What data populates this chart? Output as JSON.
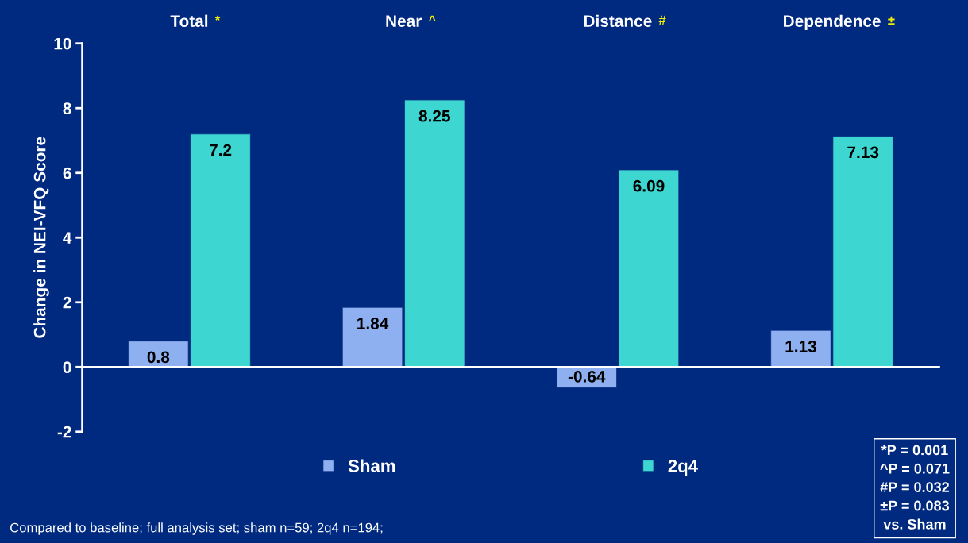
{
  "chart_data": {
    "type": "bar",
    "categories": [
      "Total",
      "Near",
      "Distance",
      "Dependence"
    ],
    "ylabel": "Change in NEI-VFQ Score",
    "series": [
      {
        "name": "Sham",
        "color": "#8fb0f0",
        "values": [
          0.8,
          1.84,
          -0.64,
          1.13
        ]
      },
      {
        "name": "2q4",
        "color": "#3dd6d0",
        "values": [
          7.2,
          8.25,
          6.09,
          7.13
        ]
      }
    ],
    "ylim": [
      -2,
      10
    ],
    "yticks": [
      -2,
      0,
      2,
      4,
      6,
      8,
      10
    ],
    "data_labels": true,
    "legend": "bottom",
    "annotations": [
      "*",
      "^",
      "#",
      "±",
      "*P = 0.001\n^P = 0.071\n#P = 0.032\n±P = 0.083\nvs. Sham",
      "Compared to baseline; full analysis set; sham n=59; 2q4 n=194;"
    ]
  }
}
